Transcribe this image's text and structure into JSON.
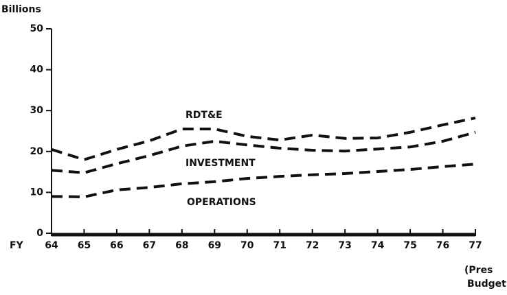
{
  "chart_data": {
    "type": "line",
    "y_label": "Billions",
    "x_label": "FY",
    "annotation": [
      "(Pres",
      "Budget)"
    ],
    "categories": [
      "64",
      "65",
      "66",
      "67",
      "68",
      "69",
      "70",
      "71",
      "72",
      "73",
      "74",
      "75",
      "76",
      "77"
    ],
    "series": [
      {
        "name": "RDT&E",
        "color": "#111111",
        "values": [
          20.5,
          18,
          20.5,
          22.6,
          25.5,
          25.5,
          23.7,
          22.8,
          24,
          23.2,
          23.3,
          24.7,
          26.5,
          28.2
        ]
      },
      {
        "name": "INVESTMENT",
        "color": "#111111",
        "values": [
          15.4,
          14.8,
          17,
          19,
          21.3,
          22.5,
          21.6,
          20.8,
          20.3,
          20.1,
          20.6,
          21.1,
          22.5,
          24.7
        ]
      },
      {
        "name": "OPERATIONS",
        "color": "#111111",
        "values": [
          9,
          8.9,
          10.6,
          11.2,
          12.1,
          12.6,
          13.4,
          13.9,
          14.3,
          14.6,
          15.1,
          15.6,
          16.3,
          16.9
        ]
      }
    ],
    "ylim": [
      0,
      50
    ],
    "yticks": [
      0,
      10,
      20,
      30,
      40,
      50
    ],
    "dashed": true
  }
}
